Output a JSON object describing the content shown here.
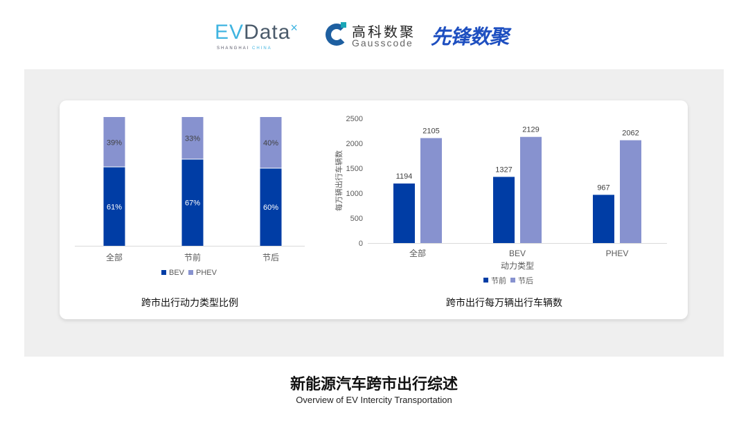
{
  "logos": {
    "evdata": "EVData",
    "evdata_sub_a": "SHANGHAI",
    "evdata_sub_b": "CHINA",
    "gauss_cn": "高科数聚",
    "gauss_en": "Gausscode",
    "xf": "先锋数聚"
  },
  "colors": {
    "bev": "#003da5",
    "phev": "#8792cf",
    "pre": "#003da5",
    "post": "#8792cf"
  },
  "chart_data": [
    {
      "type": "bar",
      "stacked": "percent",
      "title": "跨市出行动力类型比例",
      "categories": [
        "全部",
        "节前",
        "节后"
      ],
      "series": [
        {
          "name": "BEV",
          "values": [
            61,
            67,
            60
          ],
          "labels": [
            "61%",
            "67%",
            "60%"
          ]
        },
        {
          "name": "PHEV",
          "values": [
            39,
            33,
            40
          ],
          "labels": [
            "39%",
            "33%",
            "40%"
          ]
        }
      ],
      "legend": "bottom"
    },
    {
      "type": "bar",
      "title": "跨市出行每万辆出行车辆数",
      "xlabel": "动力类型",
      "ylabel": "每万辆出行车辆数",
      "categories": [
        "全部",
        "BEV",
        "PHEV"
      ],
      "ylim": [
        0,
        2500
      ],
      "yticks": [
        "0",
        "500",
        "1000",
        "1500",
        "2000",
        "2500"
      ],
      "series": [
        {
          "name": "节前",
          "values": [
            1194,
            1327,
            967
          ]
        },
        {
          "name": "节后",
          "values": [
            2105,
            2129,
            2062
          ]
        }
      ],
      "legend": "bottom"
    }
  ],
  "footer": {
    "title": "新能源汽车跨市出行综述",
    "subtitle": "Overview of EV Intercity Transportation"
  }
}
